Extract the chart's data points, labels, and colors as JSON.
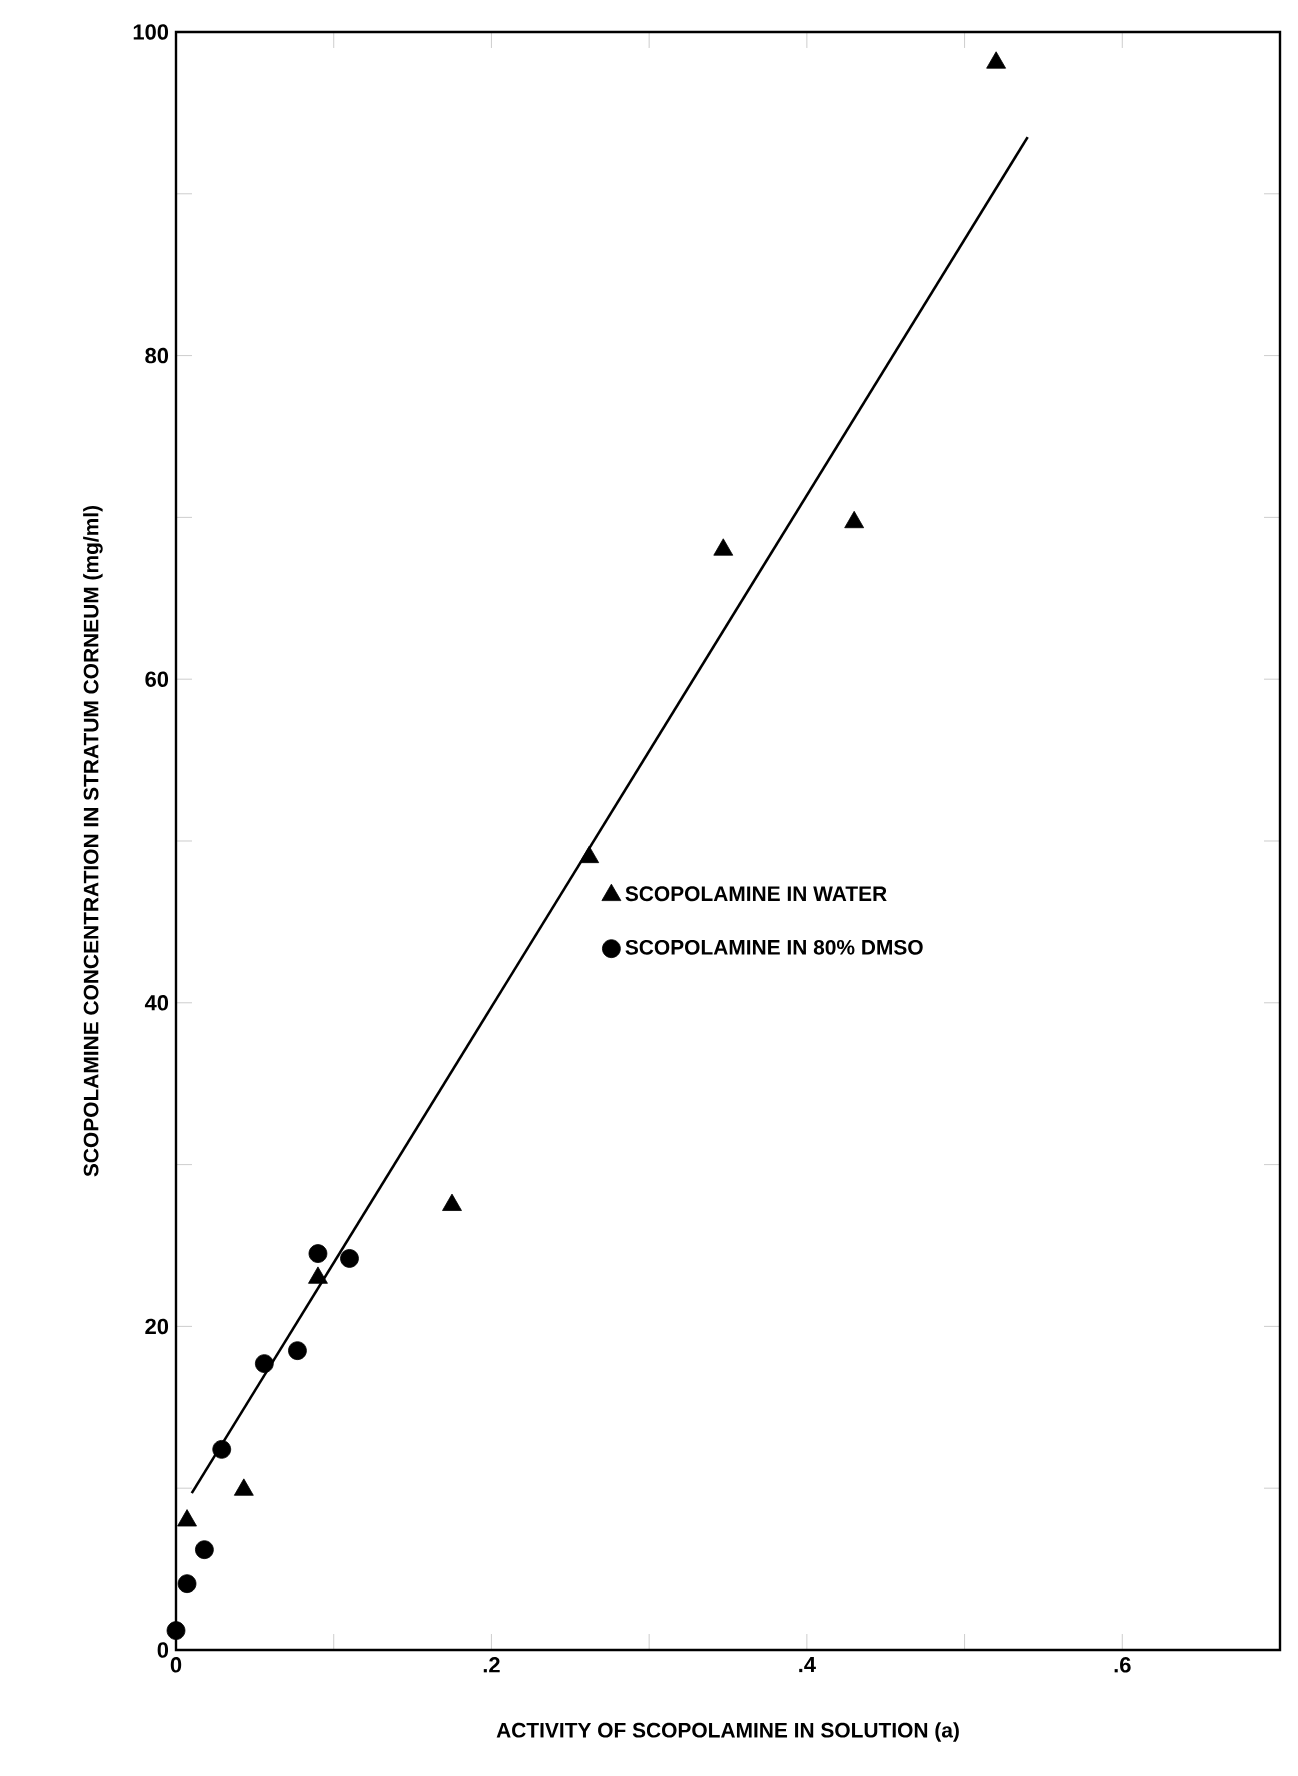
{
  "chart_data": {
    "type": "scatter",
    "xlabel": "ACTIVITY OF SCOPOLAMINE IN SOLUTION (a)",
    "ylabel": "SCOPOLAMINE CONCENTRATION IN STRATUM CORNEUM (mg/ml)",
    "xlim": [
      0,
      0.7
    ],
    "ylim": [
      0,
      100
    ],
    "xticks": [
      0,
      {
        "value": 0.1,
        "label": null
      },
      {
        "value": 0.2,
        "label": ".2"
      },
      {
        "value": 0.3,
        "label": null
      },
      {
        "value": 0.4,
        "label": ".4"
      },
      {
        "value": 0.5,
        "label": null
      },
      {
        "value": 0.6,
        "label": ".6"
      }
    ],
    "yticks": [
      0,
      {
        "value": 10,
        "label": null
      },
      20,
      {
        "value": 30,
        "label": null
      },
      40,
      {
        "value": 50,
        "label": null
      },
      60,
      {
        "value": 70,
        "label": null
      },
      80,
      {
        "value": 90,
        "label": null
      },
      100
    ],
    "legend": "right",
    "series": [
      {
        "name": "SCOPOLAMINE IN WATER",
        "color": "#000000",
        "marker": "triangle",
        "x": [
          0.007,
          0.043,
          0.09,
          0.175,
          0.262,
          0.347,
          0.43,
          0.52
        ],
        "values": [
          8.0,
          9.9,
          23,
          27.5,
          49.0,
          68.0,
          69.7,
          98.1
        ]
      },
      {
        "name": "SCOPOLAMINE IN 80% DMSO",
        "color": "#000000",
        "marker": "circle",
        "x": [
          0.0,
          0.007,
          0.018,
          0.029,
          0.056,
          0.077,
          0.09,
          0.11
        ],
        "values": [
          1.2,
          4.1,
          6.2,
          12.4,
          17.7,
          18.5,
          24.5,
          24.2
        ]
      },
      {
        "type": "line",
        "color": "#000000",
        "marker": "none",
        "x": [
          0.01,
          0.54
        ],
        "values": [
          9.7,
          93.5
        ]
      }
    ]
  }
}
